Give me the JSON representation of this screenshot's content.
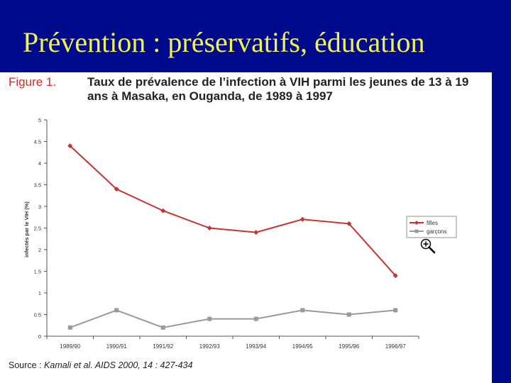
{
  "slide": {
    "title": "Prévention : préservatifs, éducation"
  },
  "figure": {
    "label": "Figure 1.",
    "title": "Taux de prévalence de l’infection à VIH parmi les jeunes de 13 à 19 ans à Masaka, en Ouganda, de 1989 à 1997",
    "source_prefix": "Source : ",
    "source_ref": "Kamali et al. AIDS 2000, 14 : 427-434"
  },
  "icons": {
    "zoom": "magnifier-plus-icon"
  },
  "colors": {
    "background": "#000a8c",
    "title": "#f2f24a",
    "filles": "#c83232",
    "garcons": "#9a9a9a"
  },
  "chart_data": {
    "type": "line",
    "categories": [
      "1989/90",
      "1990/91",
      "1991/92",
      "1992/93",
      "1993/94",
      "1994/95",
      "1995/96",
      "1996/97"
    ],
    "series": [
      {
        "name": "filles",
        "values": [
          4.4,
          3.4,
          2.9,
          2.5,
          2.4,
          2.7,
          2.6,
          1.4
        ]
      },
      {
        "name": "garçons",
        "values": [
          0.2,
          0.6,
          0.2,
          0.4,
          0.4,
          0.6,
          0.5,
          0.6
        ]
      }
    ],
    "ylabel": "infectés par le VIH (%)",
    "xlabel": "",
    "ylim": [
      0,
      5
    ],
    "yticks": [
      "0",
      "0.5",
      "1",
      "1.5",
      "2",
      "2.5",
      "3",
      "3.5",
      "4",
      "4.5",
      "5"
    ],
    "grid": false,
    "legend": "right"
  }
}
